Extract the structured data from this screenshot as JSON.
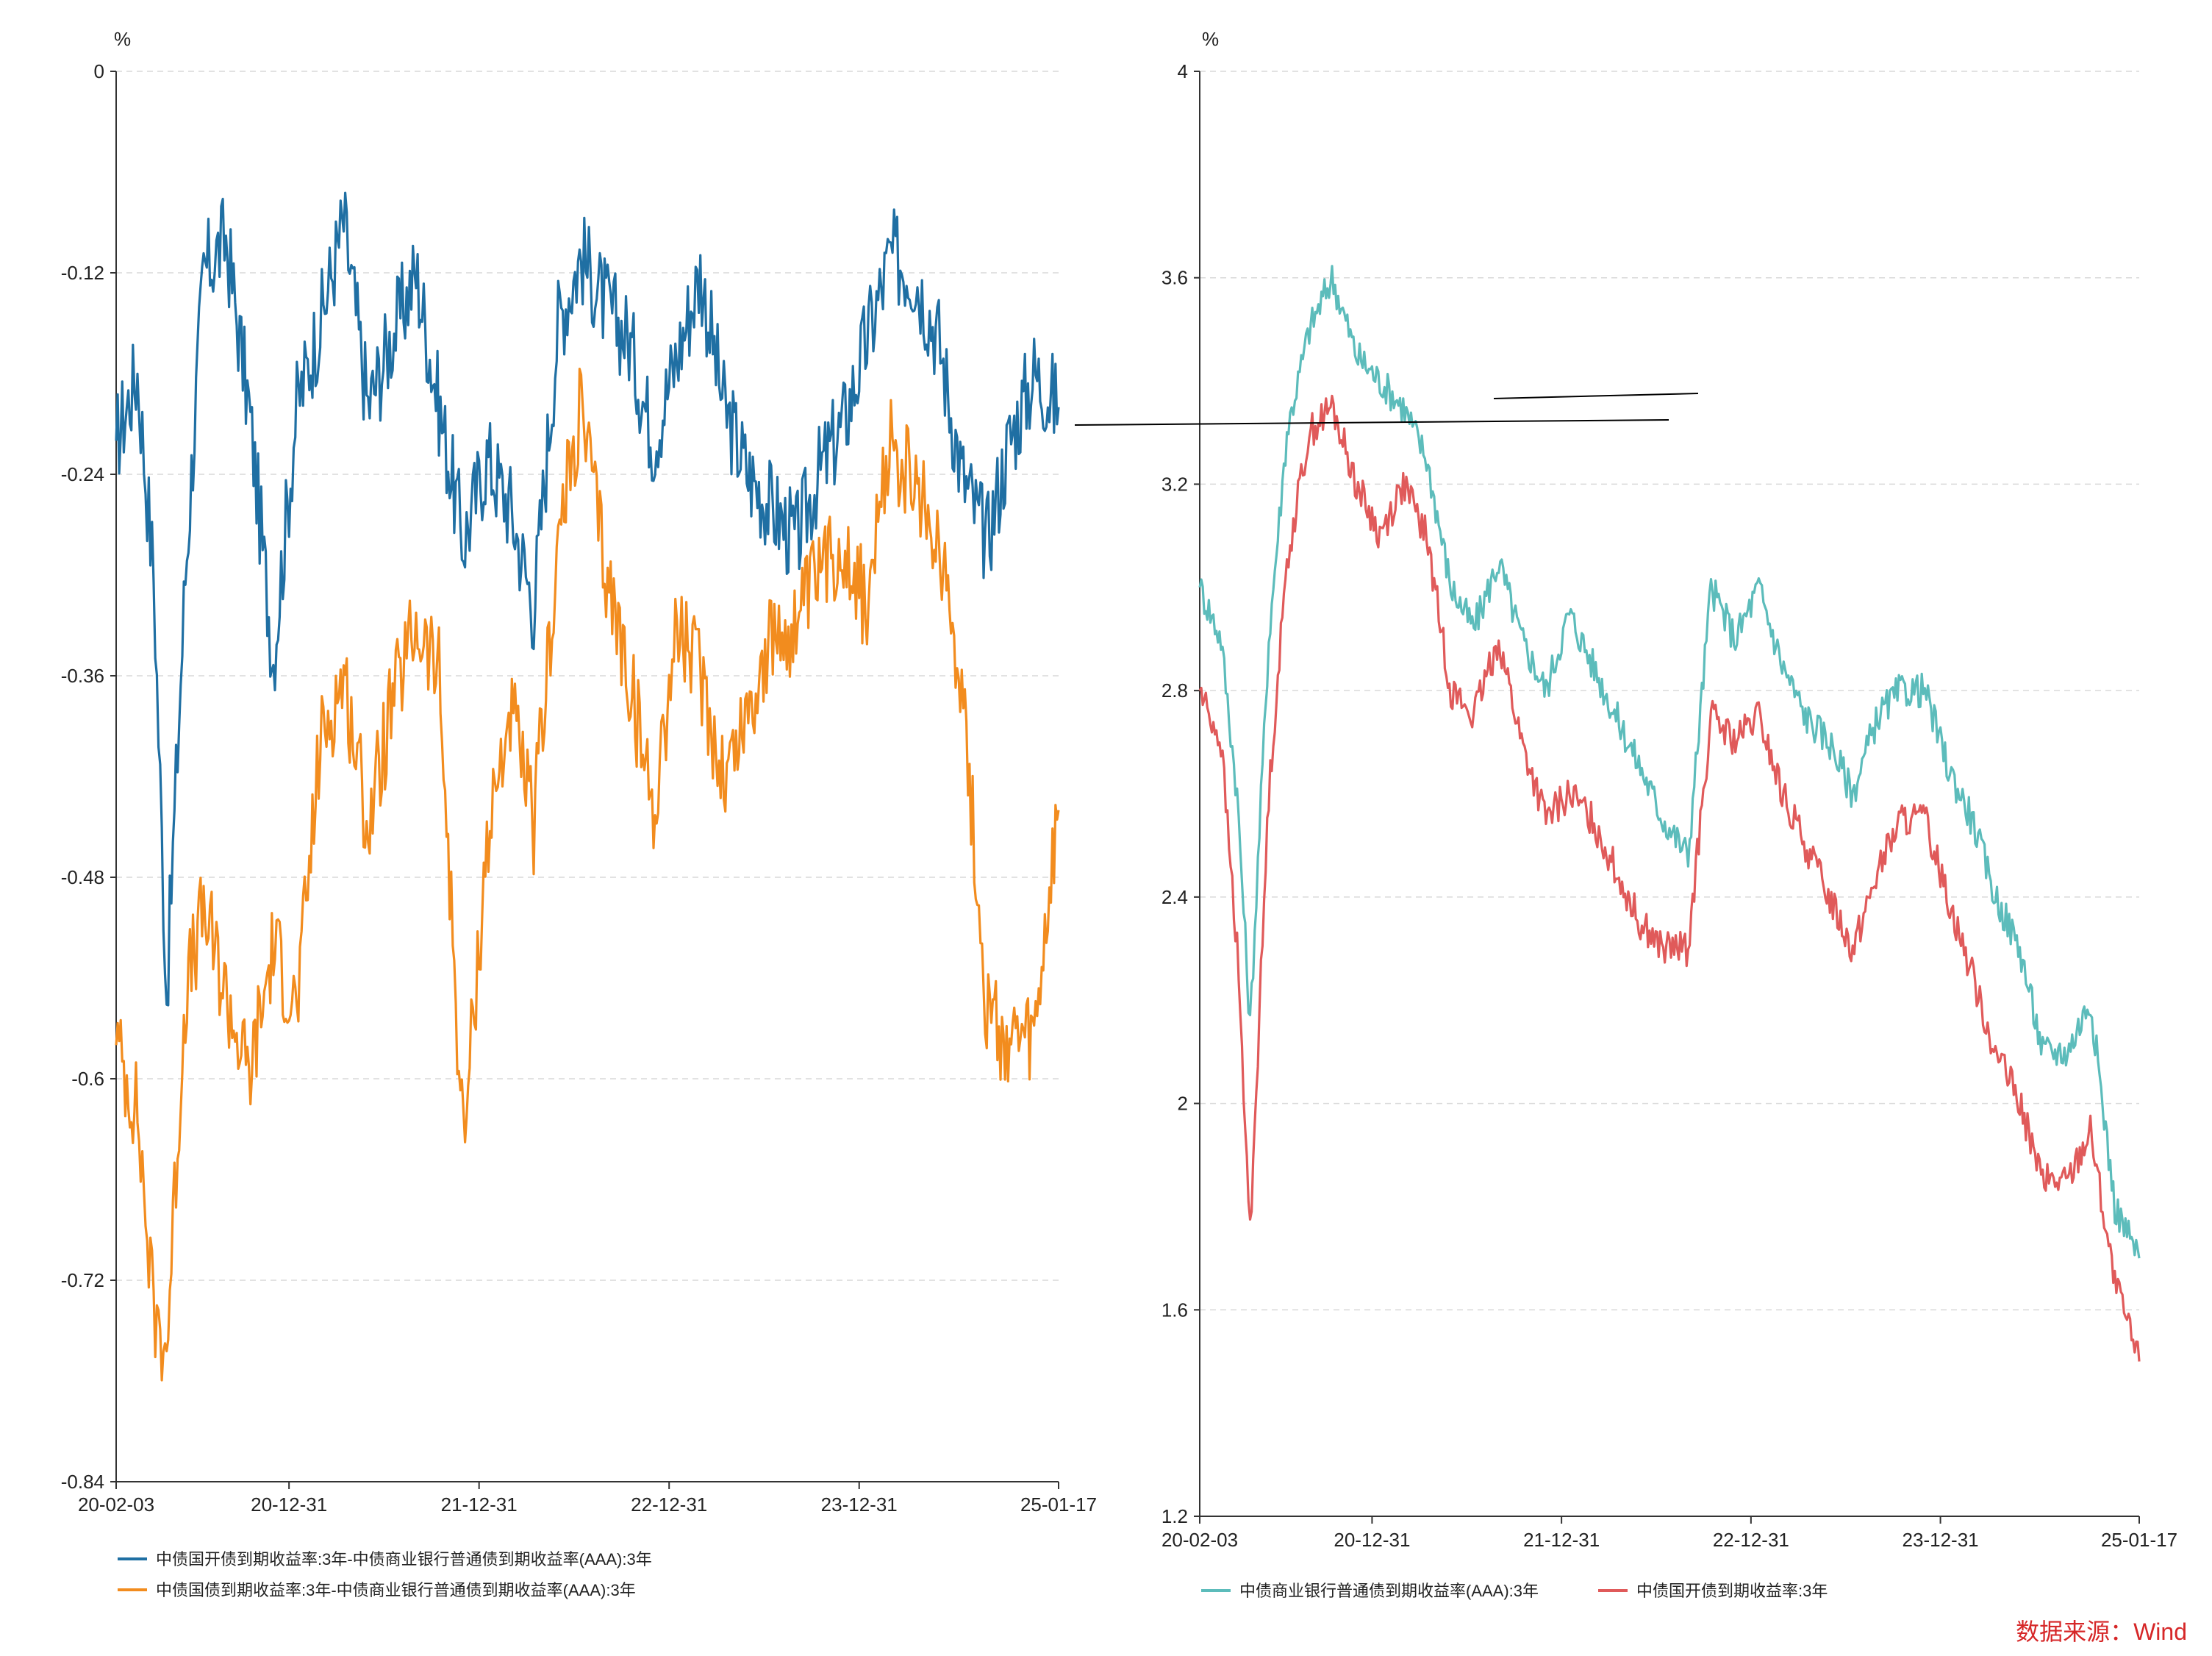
{
  "source": {
    "text": "数据来源：Wind",
    "color": "#d62728"
  },
  "chart_data": [
    {
      "type": "line",
      "unit": "%",
      "ylim": [
        -0.84,
        0
      ],
      "yticks": [
        "0",
        "-0.12",
        "-0.24",
        "-0.36",
        "-0.48",
        "-0.6",
        "-0.72",
        "-0.84"
      ],
      "xticks": [
        "20-02-03",
        "20-12-31",
        "21-12-31",
        "22-12-31",
        "23-12-31",
        "25-01-17"
      ],
      "grid": "horizontal-dashed",
      "legend_position": "bottom-left",
      "series": [
        {
          "name": "中债国开债到期收益率:3年-中债商业银行普通债到期收益率(AAA):3年",
          "color": "#1f6fa3",
          "x": [
            "2020-02-03",
            "2020-03-15",
            "2020-04-15",
            "2020-05-10",
            "2020-06-15",
            "2020-07-20",
            "2020-09-01",
            "2020-10-15",
            "2020-12-01",
            "2021-01-15",
            "2021-03-01",
            "2021-04-15",
            "2021-06-01",
            "2021-07-15",
            "2021-09-01",
            "2021-10-15",
            "2021-12-01",
            "2022-01-15",
            "2022-03-01",
            "2022-04-15",
            "2022-06-01",
            "2022-07-15",
            "2022-09-01",
            "2022-10-15",
            "2022-12-01",
            "2023-01-15",
            "2023-03-01",
            "2023-04-15",
            "2023-06-01",
            "2023-07-15",
            "2023-09-01",
            "2023-10-15",
            "2023-12-01",
            "2024-01-15",
            "2024-03-01",
            "2024-04-15",
            "2024-06-01",
            "2024-07-15",
            "2024-09-01",
            "2024-10-15",
            "2024-12-01",
            "2025-01-17"
          ],
          "y": [
            -0.22,
            -0.18,
            -0.3,
            -0.55,
            -0.3,
            -0.12,
            -0.1,
            -0.2,
            -0.35,
            -0.2,
            -0.15,
            -0.09,
            -0.2,
            -0.16,
            -0.12,
            -0.2,
            -0.28,
            -0.23,
            -0.26,
            -0.32,
            -0.15,
            -0.11,
            -0.14,
            -0.16,
            -0.22,
            -0.17,
            -0.12,
            -0.2,
            -0.24,
            -0.26,
            -0.28,
            -0.24,
            -0.21,
            -0.16,
            -0.11,
            -0.12,
            -0.16,
            -0.24,
            -0.28,
            -0.22,
            -0.18,
            -0.2
          ]
        },
        {
          "name": "中债国债到期收益率:3年-中债商业银行普通债到期收益率(AAA):3年",
          "color": "#f28c1e",
          "x": [
            "2020-02-03",
            "2020-03-15",
            "2020-04-15",
            "2020-05-10",
            "2020-06-15",
            "2020-07-20",
            "2020-09-01",
            "2020-10-15",
            "2020-12-01",
            "2021-01-15",
            "2021-03-01",
            "2021-04-15",
            "2021-06-01",
            "2021-07-15",
            "2021-09-01",
            "2021-10-15",
            "2021-12-01",
            "2022-01-15",
            "2022-03-01",
            "2022-04-15",
            "2022-06-01",
            "2022-07-15",
            "2022-09-01",
            "2022-10-15",
            "2022-12-01",
            "2023-01-15",
            "2023-03-01",
            "2023-04-15",
            "2023-06-01",
            "2023-07-15",
            "2023-09-01",
            "2023-10-15",
            "2023-12-01",
            "2024-01-15",
            "2024-03-01",
            "2024-04-15",
            "2024-06-01",
            "2024-07-15",
            "2024-09-01",
            "2024-10-15",
            "2024-12-01",
            "2025-01-17"
          ],
          "y": [
            -0.58,
            -0.62,
            -0.74,
            -0.76,
            -0.55,
            -0.5,
            -0.55,
            -0.6,
            -0.52,
            -0.56,
            -0.4,
            -0.36,
            -0.45,
            -0.38,
            -0.33,
            -0.36,
            -0.64,
            -0.46,
            -0.38,
            -0.45,
            -0.28,
            -0.2,
            -0.3,
            -0.36,
            -0.44,
            -0.33,
            -0.36,
            -0.42,
            -0.38,
            -0.34,
            -0.33,
            -0.3,
            -0.28,
            -0.32,
            -0.22,
            -0.25,
            -0.28,
            -0.36,
            -0.56,
            -0.58,
            -0.58,
            -0.44
          ]
        }
      ]
    },
    {
      "type": "line",
      "unit": "%",
      "ylim": [
        1.2,
        4
      ],
      "yticks": [
        "4",
        "3.6",
        "3.2",
        "2.8",
        "2.4",
        "2",
        "1.6",
        "1.2"
      ],
      "xticks": [
        "20-02-03",
        "20-12-31",
        "21-12-31",
        "22-12-31",
        "23-12-31",
        "25-01-17"
      ],
      "grid": "horizontal-dashed",
      "legend_position": "bottom-left",
      "series": [
        {
          "name": "中债商业银行普通债到期收益率(AAA):3年",
          "color": "#5cbcbb",
          "x": [
            "2020-02-03",
            "2020-03-15",
            "2020-04-15",
            "2020-05-10",
            "2020-06-15",
            "2020-07-20",
            "2020-09-01",
            "2020-10-15",
            "2020-12-01",
            "2021-01-15",
            "2021-03-01",
            "2021-04-15",
            "2021-06-01",
            "2021-07-15",
            "2021-09-01",
            "2021-10-15",
            "2021-12-01",
            "2022-01-15",
            "2022-03-01",
            "2022-04-15",
            "2022-06-01",
            "2022-07-15",
            "2022-09-01",
            "2022-10-15",
            "2022-12-01",
            "2023-01-15",
            "2023-03-01",
            "2023-04-15",
            "2023-06-01",
            "2023-07-15",
            "2023-09-01",
            "2023-10-15",
            "2023-12-01",
            "2024-01-15",
            "2024-03-01",
            "2024-04-15",
            "2024-06-01",
            "2024-07-15",
            "2024-09-01",
            "2024-10-15",
            "2024-12-01",
            "2025-01-17"
          ],
          "y": [
            3.0,
            2.9,
            2.6,
            2.15,
            2.9,
            3.3,
            3.5,
            3.6,
            3.45,
            3.4,
            3.35,
            3.25,
            3.0,
            2.92,
            3.05,
            2.9,
            2.8,
            2.95,
            2.85,
            2.75,
            2.65,
            2.55,
            2.48,
            3.0,
            2.9,
            3.0,
            2.85,
            2.75,
            2.7,
            2.6,
            2.75,
            2.8,
            2.8,
            2.65,
            2.55,
            2.4,
            2.3,
            2.1,
            2.1,
            2.2,
            1.8,
            1.7
          ]
        },
        {
          "name": "中债国开债到期收益率:3年",
          "color": "#e05a5a",
          "x": [
            "2020-02-03",
            "2020-03-15",
            "2020-04-15",
            "2020-05-10",
            "2020-06-15",
            "2020-07-20",
            "2020-09-01",
            "2020-10-15",
            "2020-12-01",
            "2021-01-15",
            "2021-03-01",
            "2021-04-15",
            "2021-06-01",
            "2021-07-15",
            "2021-09-01",
            "2021-10-15",
            "2021-12-01",
            "2022-01-15",
            "2022-03-01",
            "2022-04-15",
            "2022-06-01",
            "2022-07-15",
            "2022-09-01",
            "2022-10-15",
            "2022-12-01",
            "2023-01-15",
            "2023-03-01",
            "2023-04-15",
            "2023-06-01",
            "2023-07-15",
            "2023-09-01",
            "2023-10-15",
            "2023-12-01",
            "2024-01-15",
            "2024-03-01",
            "2024-04-15",
            "2024-06-01",
            "2024-07-15",
            "2024-09-01",
            "2024-10-15",
            "2024-12-01",
            "2025-01-17"
          ],
          "y": [
            2.8,
            2.7,
            2.3,
            1.75,
            2.6,
            3.05,
            3.3,
            3.35,
            3.2,
            3.1,
            3.2,
            3.1,
            2.8,
            2.75,
            2.9,
            2.7,
            2.55,
            2.6,
            2.55,
            2.45,
            2.35,
            2.3,
            2.3,
            2.75,
            2.7,
            2.75,
            2.6,
            2.5,
            2.4,
            2.3,
            2.45,
            2.55,
            2.55,
            2.4,
            2.25,
            2.1,
            2.0,
            1.85,
            1.85,
            1.95,
            1.65,
            1.5
          ]
        }
      ]
    }
  ]
}
